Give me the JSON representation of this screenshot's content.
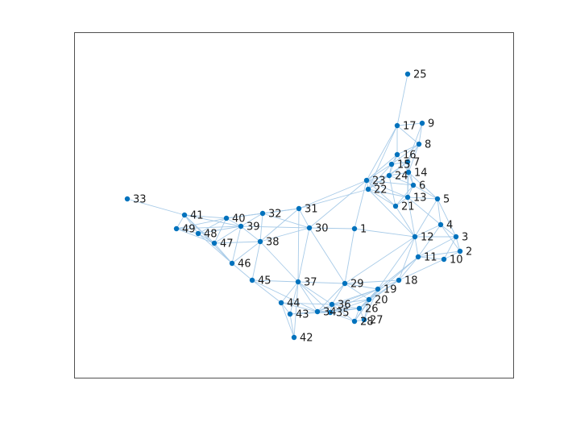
{
  "graph": {
    "nodes": [
      {
        "id": "1",
        "label": "1"
      },
      {
        "id": "2",
        "label": "2"
      },
      {
        "id": "3",
        "label": "3"
      },
      {
        "id": "4",
        "label": "4"
      },
      {
        "id": "5",
        "label": "5"
      },
      {
        "id": "6",
        "label": "6"
      },
      {
        "id": "7",
        "label": "7"
      },
      {
        "id": "8",
        "label": "8"
      },
      {
        "id": "9",
        "label": "9"
      },
      {
        "id": "10",
        "label": "10"
      },
      {
        "id": "11",
        "label": "11"
      },
      {
        "id": "12",
        "label": "12"
      },
      {
        "id": "13",
        "label": "13"
      },
      {
        "id": "14",
        "label": "14"
      },
      {
        "id": "15",
        "label": "15"
      },
      {
        "id": "16",
        "label": "16"
      },
      {
        "id": "17",
        "label": "17"
      },
      {
        "id": "18",
        "label": "18"
      },
      {
        "id": "19",
        "label": "19"
      },
      {
        "id": "20",
        "label": "20"
      },
      {
        "id": "21",
        "label": "21"
      },
      {
        "id": "22",
        "label": "22"
      },
      {
        "id": "23",
        "label": "23"
      },
      {
        "id": "24",
        "label": "24"
      },
      {
        "id": "25",
        "label": "25"
      },
      {
        "id": "26",
        "label": "26"
      },
      {
        "id": "27",
        "label": "27"
      },
      {
        "id": "28",
        "label": "28"
      },
      {
        "id": "29",
        "label": "29"
      },
      {
        "id": "30",
        "label": "30"
      },
      {
        "id": "31",
        "label": "31"
      },
      {
        "id": "32",
        "label": "32"
      },
      {
        "id": "33",
        "label": "33"
      },
      {
        "id": "34",
        "label": "34"
      },
      {
        "id": "35",
        "label": "35"
      },
      {
        "id": "36",
        "label": "36"
      },
      {
        "id": "37",
        "label": "37"
      },
      {
        "id": "38",
        "label": "38"
      },
      {
        "id": "39",
        "label": "39"
      },
      {
        "id": "40",
        "label": "40"
      },
      {
        "id": "41",
        "label": "41"
      },
      {
        "id": "42",
        "label": "42"
      },
      {
        "id": "43",
        "label": "43"
      },
      {
        "id": "44",
        "label": "44"
      },
      {
        "id": "45",
        "label": "45"
      },
      {
        "id": "46",
        "label": "46"
      },
      {
        "id": "47",
        "label": "47"
      },
      {
        "id": "48",
        "label": "48"
      },
      {
        "id": "49",
        "label": "49"
      }
    ],
    "edges": [
      [
        "25",
        "17"
      ],
      [
        "17",
        "9"
      ],
      [
        "17",
        "8"
      ],
      [
        "17",
        "16"
      ],
      [
        "17",
        "23"
      ],
      [
        "17",
        "22"
      ],
      [
        "9",
        "8"
      ],
      [
        "9",
        "7"
      ],
      [
        "8",
        "16"
      ],
      [
        "8",
        "15"
      ],
      [
        "8",
        "7"
      ],
      [
        "8",
        "14"
      ],
      [
        "16",
        "15"
      ],
      [
        "16",
        "24"
      ],
      [
        "16",
        "14"
      ],
      [
        "16",
        "23"
      ],
      [
        "15",
        "24"
      ],
      [
        "15",
        "7"
      ],
      [
        "15",
        "23"
      ],
      [
        "15",
        "22"
      ],
      [
        "7",
        "24"
      ],
      [
        "7",
        "14"
      ],
      [
        "7",
        "6"
      ],
      [
        "7",
        "13"
      ],
      [
        "7",
        "22"
      ],
      [
        "24",
        "14"
      ],
      [
        "24",
        "23"
      ],
      [
        "24",
        "22"
      ],
      [
        "24",
        "6"
      ],
      [
        "24",
        "21"
      ],
      [
        "14",
        "6"
      ],
      [
        "14",
        "13"
      ],
      [
        "14",
        "5"
      ],
      [
        "23",
        "22"
      ],
      [
        "23",
        "6"
      ],
      [
        "23",
        "13"
      ],
      [
        "23",
        "21"
      ],
      [
        "23",
        "1"
      ],
      [
        "23",
        "31"
      ],
      [
        "23",
        "30"
      ],
      [
        "22",
        "13"
      ],
      [
        "22",
        "21"
      ],
      [
        "22",
        "31"
      ],
      [
        "22",
        "12"
      ],
      [
        "6",
        "13"
      ],
      [
        "6",
        "5"
      ],
      [
        "6",
        "21"
      ],
      [
        "13",
        "21"
      ],
      [
        "13",
        "5"
      ],
      [
        "13",
        "12"
      ],
      [
        "13",
        "4"
      ],
      [
        "21",
        "12"
      ],
      [
        "5",
        "4"
      ],
      [
        "5",
        "12"
      ],
      [
        "5",
        "3"
      ],
      [
        "4",
        "3"
      ],
      [
        "4",
        "12"
      ],
      [
        "4",
        "11"
      ],
      [
        "4",
        "2"
      ],
      [
        "3",
        "2"
      ],
      [
        "3",
        "10"
      ],
      [
        "3",
        "11"
      ],
      [
        "3",
        "12"
      ],
      [
        "2",
        "10"
      ],
      [
        "2",
        "11"
      ],
      [
        "10",
        "11"
      ],
      [
        "10",
        "18"
      ],
      [
        "11",
        "12"
      ],
      [
        "11",
        "18"
      ],
      [
        "11",
        "19"
      ],
      [
        "11",
        "20"
      ],
      [
        "12",
        "18"
      ],
      [
        "12",
        "19"
      ],
      [
        "12",
        "29"
      ],
      [
        "12",
        "1"
      ],
      [
        "1",
        "30"
      ],
      [
        "1",
        "29"
      ],
      [
        "18",
        "19"
      ],
      [
        "18",
        "20"
      ],
      [
        "18",
        "26"
      ],
      [
        "18",
        "29"
      ],
      [
        "19",
        "20"
      ],
      [
        "19",
        "26"
      ],
      [
        "19",
        "27"
      ],
      [
        "19",
        "28"
      ],
      [
        "19",
        "29"
      ],
      [
        "19",
        "36"
      ],
      [
        "19",
        "34"
      ],
      [
        "19",
        "35"
      ],
      [
        "20",
        "26"
      ],
      [
        "20",
        "27"
      ],
      [
        "20",
        "28"
      ],
      [
        "20",
        "36"
      ],
      [
        "20",
        "35"
      ],
      [
        "20",
        "29"
      ],
      [
        "26",
        "27"
      ],
      [
        "26",
        "28"
      ],
      [
        "26",
        "36"
      ],
      [
        "26",
        "35"
      ],
      [
        "26",
        "34"
      ],
      [
        "27",
        "28"
      ],
      [
        "28",
        "36"
      ],
      [
        "28",
        "35"
      ],
      [
        "36",
        "35"
      ],
      [
        "36",
        "34"
      ],
      [
        "36",
        "29"
      ],
      [
        "36",
        "37"
      ],
      [
        "36",
        "44"
      ],
      [
        "35",
        "34"
      ],
      [
        "35",
        "43"
      ],
      [
        "35",
        "37"
      ],
      [
        "34",
        "43"
      ],
      [
        "34",
        "44"
      ],
      [
        "34",
        "37"
      ],
      [
        "34",
        "29"
      ],
      [
        "29",
        "37"
      ],
      [
        "29",
        "30"
      ],
      [
        "30",
        "31"
      ],
      [
        "30",
        "38"
      ],
      [
        "30",
        "39"
      ],
      [
        "30",
        "37"
      ],
      [
        "30",
        "32"
      ],
      [
        "31",
        "32"
      ],
      [
        "31",
        "38"
      ],
      [
        "31",
        "37"
      ],
      [
        "31",
        "40"
      ],
      [
        "32",
        "40"
      ],
      [
        "32",
        "39"
      ],
      [
        "32",
        "38"
      ],
      [
        "33",
        "41"
      ],
      [
        "41",
        "40"
      ],
      [
        "41",
        "39"
      ],
      [
        "41",
        "48"
      ],
      [
        "41",
        "49"
      ],
      [
        "41",
        "47"
      ],
      [
        "41",
        "46"
      ],
      [
        "40",
        "39"
      ],
      [
        "40",
        "48"
      ],
      [
        "40",
        "47"
      ],
      [
        "40",
        "49"
      ],
      [
        "39",
        "48"
      ],
      [
        "39",
        "47"
      ],
      [
        "39",
        "38"
      ],
      [
        "39",
        "46"
      ],
      [
        "39",
        "49"
      ],
      [
        "48",
        "49"
      ],
      [
        "48",
        "47"
      ],
      [
        "48",
        "46"
      ],
      [
        "49",
        "47"
      ],
      [
        "47",
        "46"
      ],
      [
        "47",
        "38"
      ],
      [
        "46",
        "45"
      ],
      [
        "46",
        "38"
      ],
      [
        "45",
        "44"
      ],
      [
        "45",
        "37"
      ],
      [
        "45",
        "38"
      ],
      [
        "45",
        "34"
      ],
      [
        "44",
        "43"
      ],
      [
        "44",
        "42"
      ],
      [
        "44",
        "37"
      ],
      [
        "43",
        "42"
      ],
      [
        "43",
        "37"
      ],
      [
        "42",
        "37"
      ],
      [
        "37",
        "38"
      ]
    ]
  }
}
